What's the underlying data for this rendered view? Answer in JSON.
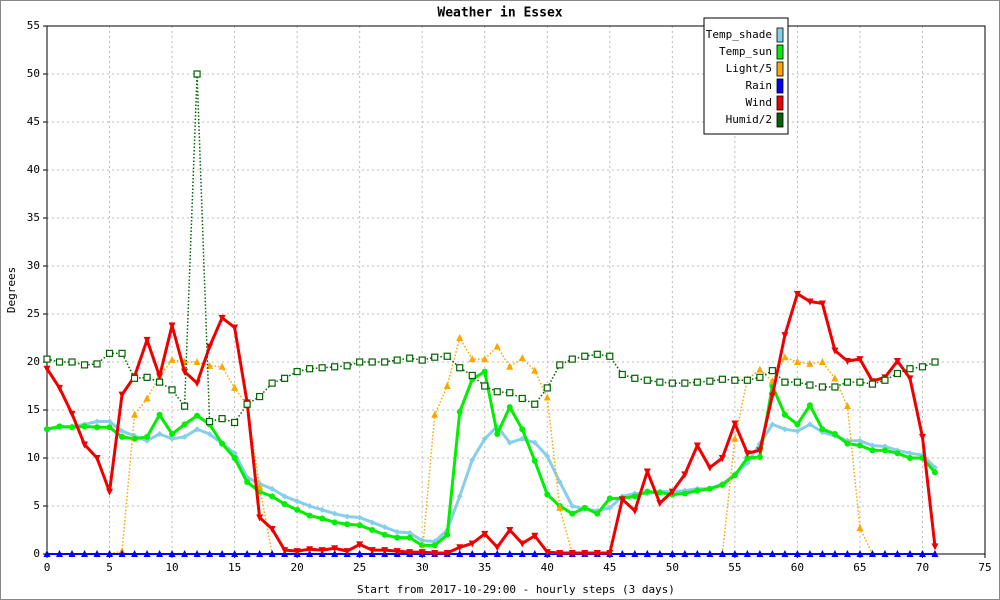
{
  "chart_data": {
    "type": "line",
    "title": "Weather in Essex",
    "x_label": "Start from 2017-10-29:00 - hourly steps (3 days)",
    "y_label": "Degrees",
    "xlim": [
      0,
      75
    ],
    "ylim": [
      0,
      55
    ],
    "xticks": [
      0,
      5,
      10,
      15,
      20,
      25,
      30,
      35,
      40,
      45,
      50,
      55,
      60,
      65,
      70,
      75
    ],
    "yticks": [
      0,
      5,
      10,
      15,
      20,
      25,
      30,
      35,
      40,
      45,
      50,
      55
    ],
    "grid": true,
    "legend": "upper right",
    "x": [
      0,
      1,
      2,
      3,
      4,
      5,
      6,
      7,
      8,
      9,
      10,
      11,
      12,
      13,
      14,
      15,
      16,
      17,
      18,
      19,
      20,
      21,
      22,
      23,
      24,
      25,
      26,
      27,
      28,
      29,
      30,
      31,
      32,
      33,
      34,
      35,
      36,
      37,
      38,
      39,
      40,
      41,
      42,
      43,
      44,
      45,
      46,
      47,
      48,
      49,
      50,
      51,
      52,
      53,
      54,
      55,
      56,
      57,
      58,
      59,
      60,
      61,
      62,
      63,
      64,
      65,
      66,
      67,
      68,
      69,
      70,
      71
    ],
    "series": [
      {
        "name": "Temp_shade",
        "color": "#87ceeb",
        "marker": "diamond",
        "line_style": "solid",
        "values": [
          13,
          13.2,
          13.3,
          13.5,
          13.8,
          13.8,
          12.8,
          12.3,
          11.8,
          12.5,
          12,
          12.2,
          13,
          12.5,
          11.5,
          10.5,
          8,
          7.3,
          6.8,
          6,
          5.5,
          5,
          4.6,
          4.2,
          3.9,
          3.8,
          3.3,
          2.8,
          2.3,
          2.2,
          1.4,
          1.3,
          2.5,
          6,
          9.8,
          12,
          13.3,
          11.6,
          12,
          11.6,
          10.2,
          7.5,
          5,
          4.7,
          4.5,
          4.8,
          6,
          6.3,
          6.3,
          6.5,
          6.5,
          6.6,
          6.8,
          6.8,
          7.3,
          8.3,
          9.5,
          11.5,
          13.5,
          13,
          12.8,
          13.5,
          12.7,
          12.3,
          11.8,
          11.8,
          11.3,
          11.2,
          10.8,
          10.5,
          10.3,
          9
        ]
      },
      {
        "name": "Temp_sun",
        "color": "#00ee00",
        "marker": "circle",
        "line_style": "solid",
        "values": [
          13,
          13.3,
          13.2,
          13.3,
          13.2,
          13.2,
          12.2,
          12,
          12.2,
          14.5,
          12.5,
          13.5,
          14.4,
          13.5,
          11.5,
          10,
          7.5,
          6.5,
          6,
          5.2,
          4.6,
          4,
          3.7,
          3.3,
          3.1,
          3,
          2.5,
          2,
          1.7,
          1.7,
          0.9,
          0.9,
          2,
          14.8,
          18.2,
          19,
          12.5,
          15.3,
          13,
          9.7,
          6.2,
          5,
          4.2,
          4.8,
          4.2,
          5.8,
          5.8,
          6,
          6.5,
          6.4,
          6.2,
          6.3,
          6.6,
          6.8,
          7.2,
          8.2,
          10,
          10.1,
          17.5,
          14.5,
          13.5,
          15.5,
          13,
          12.5,
          11.5,
          11.3,
          10.8,
          10.8,
          10.5,
          10,
          10,
          8.5
        ]
      },
      {
        "name": "Light/5",
        "color": "#ffa500",
        "marker": "triangle-up",
        "line_style": "dotted",
        "values": [
          0,
          0,
          0,
          0,
          0,
          0,
          0.3,
          14.5,
          16.2,
          18.5,
          20.2,
          20,
          20,
          19.6,
          19.5,
          17.3,
          15.5,
          7,
          0,
          0,
          0,
          0,
          0,
          0,
          0,
          0,
          0,
          0,
          0,
          0,
          0,
          14.5,
          17.5,
          22.5,
          20.3,
          20.3,
          21.6,
          19.5,
          20.4,
          19.1,
          16.3,
          4.8,
          0,
          0,
          0,
          0,
          0,
          0,
          0,
          0,
          0,
          0,
          0,
          0,
          0,
          12,
          18.2,
          19.2,
          18,
          20.5,
          20,
          19.8,
          20,
          18.3,
          15.4,
          2.7,
          0,
          0,
          0,
          0,
          0,
          0
        ]
      },
      {
        "name": "Rain",
        "color": "#0000ff",
        "marker": "triangle-up",
        "line_style": "solid",
        "values": [
          0,
          0,
          0,
          0,
          0,
          0,
          0,
          0,
          0,
          0,
          0,
          0,
          0,
          0,
          0,
          0,
          0,
          0,
          0,
          0,
          0,
          0,
          0,
          0,
          0,
          0,
          0,
          0,
          0,
          0,
          0,
          0,
          0,
          0,
          0,
          0,
          0,
          0,
          0,
          0,
          0,
          0,
          0,
          0,
          0,
          0,
          0,
          0,
          0,
          0,
          0,
          0,
          0,
          0,
          0,
          0,
          0,
          0,
          0,
          0,
          0,
          0,
          0,
          0,
          0,
          0,
          0,
          0,
          0,
          0,
          0,
          0
        ]
      },
      {
        "name": "Wind",
        "color": "#ee0000",
        "marker": "triangle-down",
        "line_style": "solid",
        "values": [
          19.3,
          17.3,
          14.6,
          11.4,
          10,
          6.5,
          16.6,
          18.5,
          22.3,
          18.5,
          23.8,
          19,
          17.8,
          21.6,
          24.6,
          23.6,
          15.8,
          3.8,
          2.6,
          0.4,
          0.3,
          0.5,
          0.4,
          0.6,
          0.3,
          1,
          0.4,
          0.4,
          0.3,
          0.2,
          0.2,
          0.1,
          0.1,
          0.7,
          1.1,
          2.1,
          0.7,
          2.5,
          1.1,
          1.9,
          0.2,
          0.1,
          0.1,
          0.1,
          0.1,
          0.1,
          5.7,
          4.5,
          8.6,
          5.3,
          6.5,
          8.3,
          11.3,
          9,
          10,
          13.6,
          10.5,
          10.8,
          16.5,
          22.8,
          27.1,
          26.3,
          26.1,
          21.2,
          20.1,
          20.3,
          18,
          18.4,
          20.1,
          18.3,
          12.2,
          0.8
        ]
      },
      {
        "name": "Humid/2",
        "color": "#006400",
        "marker": "square",
        "line_style": "dotted",
        "values": [
          20.3,
          20,
          20,
          19.7,
          19.8,
          20.9,
          20.9,
          18.3,
          18.4,
          17.9,
          17.1,
          15.4,
          50,
          13.8,
          14.1,
          13.7,
          15.6,
          16.4,
          17.8,
          18.3,
          19,
          19.3,
          19.4,
          19.5,
          19.6,
          20,
          20,
          20,
          20.2,
          20.4,
          20.2,
          20.5,
          20.6,
          19.4,
          18.6,
          17.5,
          16.9,
          16.8,
          16.2,
          15.6,
          17.3,
          19.7,
          20.3,
          20.6,
          20.8,
          20.6,
          18.7,
          18.3,
          18.1,
          17.9,
          17.8,
          17.8,
          17.9,
          18,
          18.2,
          18.1,
          18.1,
          18.4,
          19.1,
          17.9,
          17.9,
          17.6,
          17.4,
          17.4,
          17.9,
          17.9,
          17.7,
          18.1,
          18.8,
          19.3,
          19.5,
          20
        ]
      }
    ]
  }
}
